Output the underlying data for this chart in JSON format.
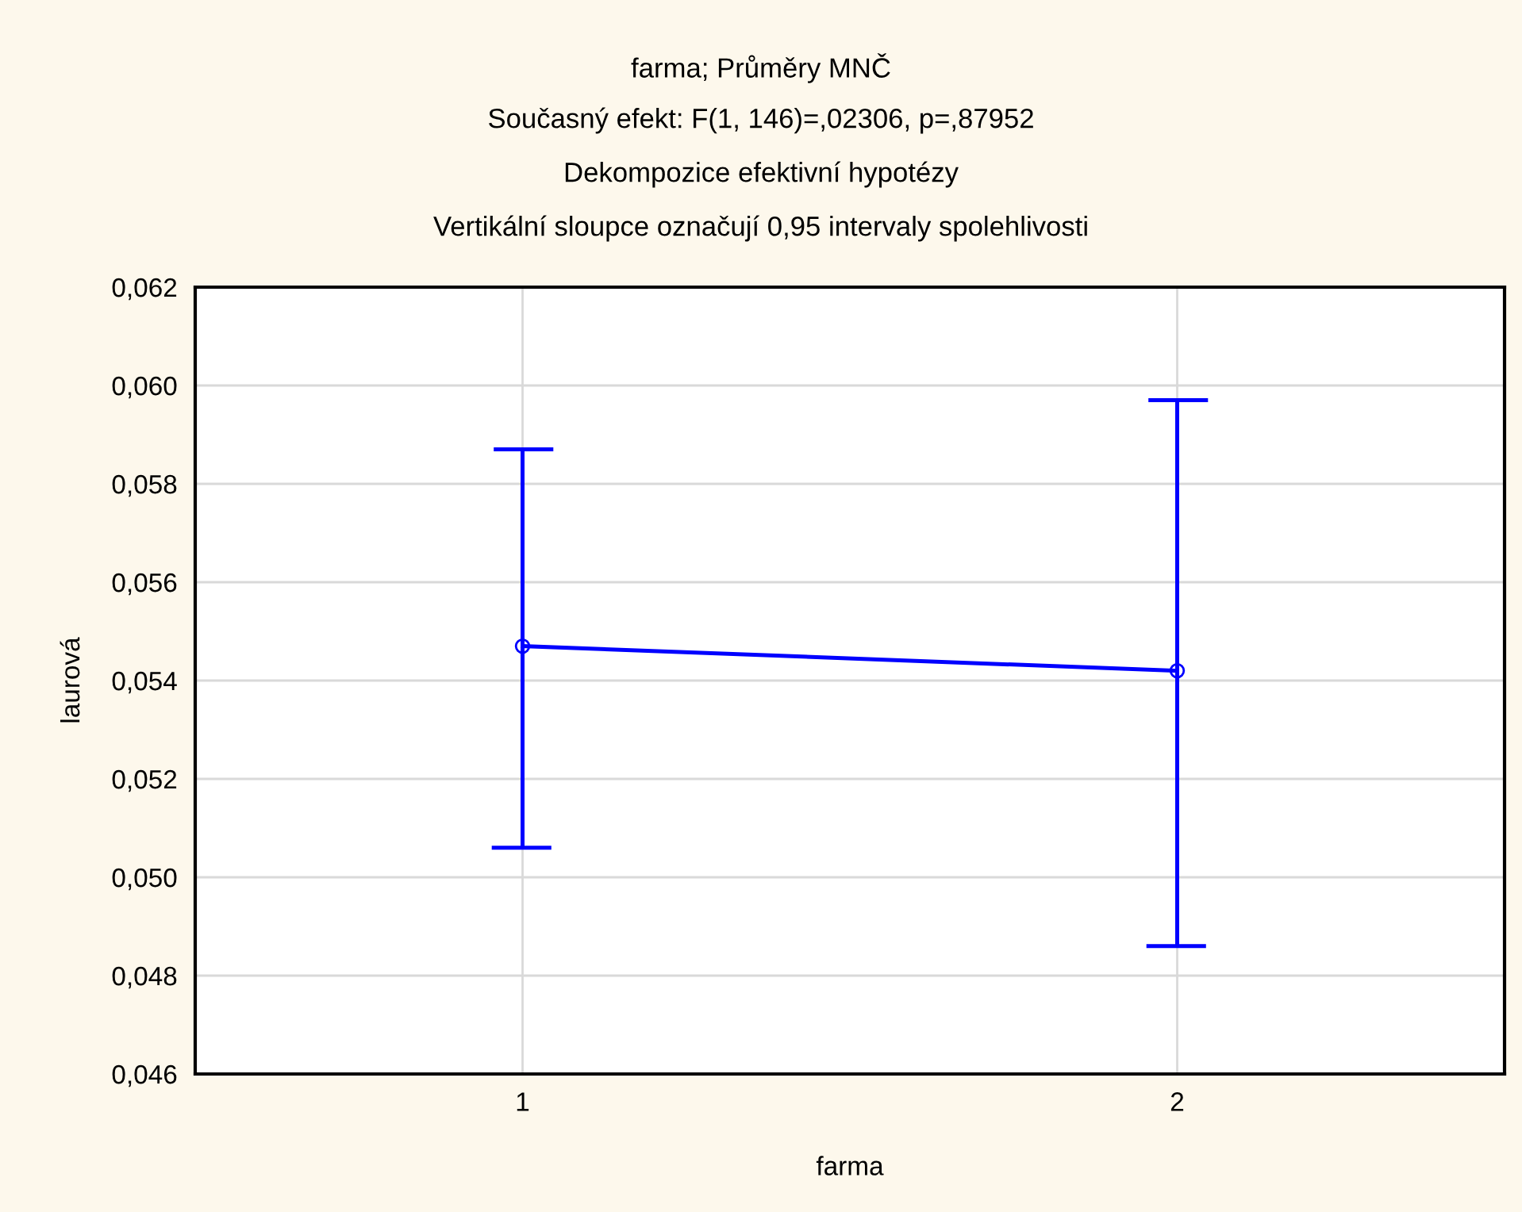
{
  "chart_data": {
    "type": "line",
    "title": "farma; Průměry MNČ",
    "subtitle": "Současný efekt: F(1, 146)=,02306, p=,87952\nDekompozice efektivní hypotézy\nVertikální sloupce označují 0,95 intervaly spolehlivosti",
    "xlabel": "farma",
    "ylabel": "laurová",
    "categories": [
      "1",
      "2"
    ],
    "series": [
      {
        "color": "#0000ff",
        "values": [
          0.0547,
          0.0542
        ],
        "errors": [
          [
            0.0506,
            0.0587
          ],
          [
            0.0486,
            0.0597
          ]
        ]
      }
    ],
    "marker": "circle",
    "line_style": "solid",
    "grid": true,
    "ylim": [
      0.046,
      0.062
    ],
    "yticks": [
      {
        "value": 0.046,
        "label": "0,046"
      },
      {
        "value": 0.048,
        "label": "0,048"
      },
      {
        "value": 0.05,
        "label": "0,050"
      },
      {
        "value": 0.052,
        "label": "0,052"
      },
      {
        "value": 0.054,
        "label": "0,054"
      },
      {
        "value": 0.056,
        "label": "0,056"
      },
      {
        "value": 0.058,
        "label": "0,058"
      },
      {
        "value": 0.06,
        "label": "0,060"
      },
      {
        "value": 0.062,
        "label": "0,062"
      }
    ]
  }
}
